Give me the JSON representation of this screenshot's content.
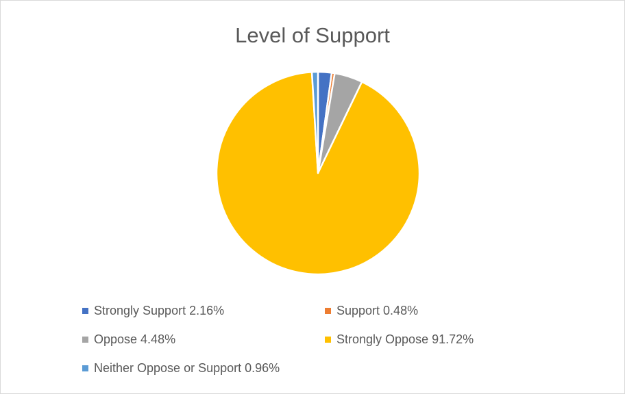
{
  "chart_data": {
    "type": "pie",
    "title": "Level of Support",
    "legend_position": "bottom",
    "start_angle_deg": 0,
    "direction": "clockwise",
    "slices": [
      {
        "label": "Strongly Support",
        "value_text": "2.16%",
        "value": 2.16,
        "color": "#4472c4"
      },
      {
        "label": "Support",
        "value_text": "0.48%",
        "value": 0.48,
        "color": "#ed7d31"
      },
      {
        "label": "Oppose",
        "value_text": "4.48%",
        "value": 4.48,
        "color": "#a5a5a5"
      },
      {
        "label": "Strongly Oppose",
        "value_text": "91.72%",
        "value": 91.72,
        "color": "#ffc000"
      },
      {
        "label": "Neither Oppose or Support",
        "value_text": "0.96%",
        "value": 0.96,
        "color": "#5b9bd5"
      }
    ]
  }
}
